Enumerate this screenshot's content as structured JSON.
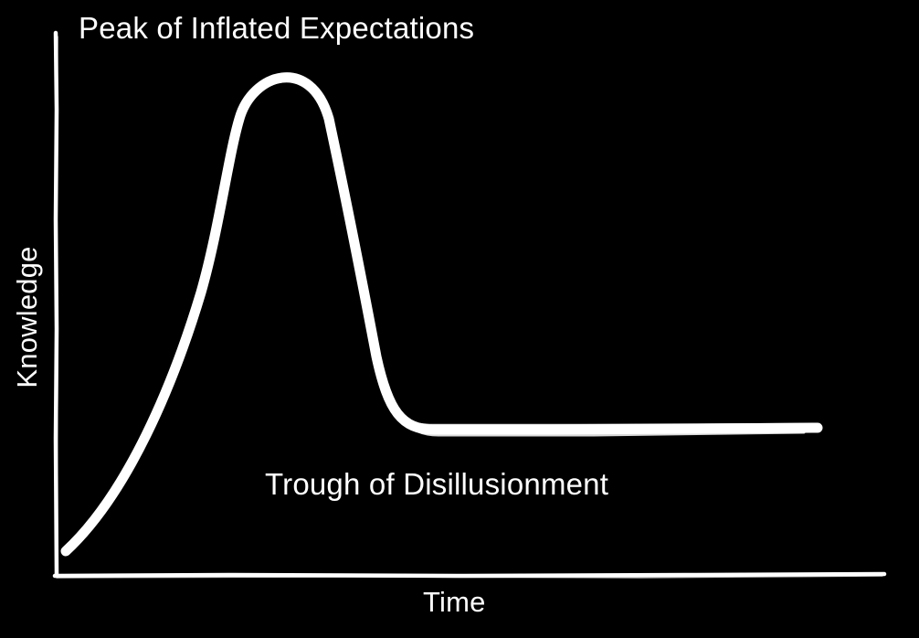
{
  "diagram": {
    "annotations": {
      "peak": "Peak of Inflated Expectations",
      "trough": "Trough of Disillusionment"
    },
    "axes": {
      "x_label": "Time",
      "y_label": "Knowledge"
    },
    "colors": {
      "background": "#000000",
      "stroke": "#ffffff"
    }
  }
}
